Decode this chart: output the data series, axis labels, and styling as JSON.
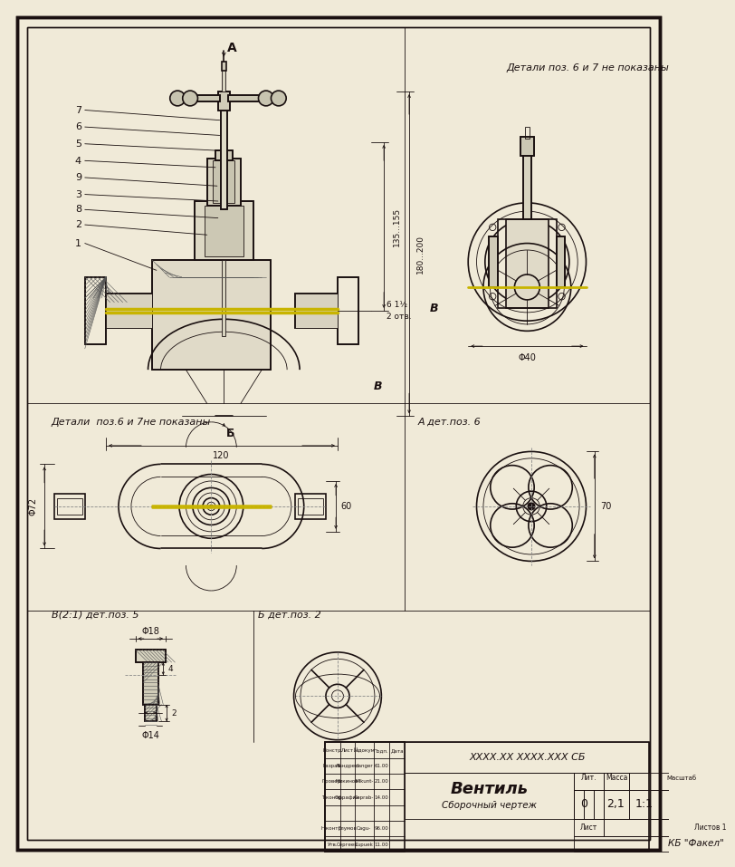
{
  "bg_color": "#f0ead8",
  "dc": "#1a1010",
  "yc": "#c8b400",
  "lw_thick": 1.8,
  "lw_main": 1.2,
  "lw_thin": 0.6,
  "lw_hatch": 0.4,
  "title": "Вентиль",
  "subtitle": "Сборочный чертеж",
  "code": "XXXX.XX XXXX.XXX СБ",
  "company": "КБ \"Факел\"",
  "liter": "0",
  "mass": "2,1",
  "scale_val": "1:1",
  "sheet_label": "Лист",
  "sheets_label": "Листов 1",
  "note_top_right": "Детали поз. 6 и 7 не показаны",
  "note_mid_left": "Детали  поз.6 и 7не показаны",
  "lA": "A",
  "lB": "B",
  "lBig_B": "Б",
  "lB_detail": "Б дет.поз. 2",
  "lV_detail": "В(2:1) дет.поз. 5",
  "lA_detail": "А дет.поз. 6",
  "d135": "135...155",
  "d180": "180...200",
  "d120": "120",
  "dPhi40": "Φ40",
  "dPhi72": "Φ72",
  "d60": "60",
  "d70": "70",
  "dPhi18": "Φ18",
  "dPhi14": "Φ14",
  "d4": "4",
  "d2": "2",
  "d6_1_2": "6 1½",
  "d2otv": "2 отв.",
  "pos_nums": [
    "1",
    "2",
    "3",
    "4",
    "5",
    "6",
    "7",
    "8",
    "9"
  ],
  "tb_rows": [
    [
      "Констр.",
      "Лист",
      "№докум",
      "Подп.",
      "Дата"
    ],
    [
      "Разраб.",
      "Линдрес",
      "danger",
      "61.00"
    ],
    [
      "Провер.",
      "Микинов",
      "Mikunt-",
      "21.00"
    ],
    [
      "Т.контр.",
      "Офрафин",
      "Geprab-",
      "14.00"
    ],
    [
      "",
      "",
      "",
      ""
    ],
    [
      "Н.контр.",
      "Глумов",
      "Cagu-",
      "96.00"
    ],
    [
      "Утв.",
      "Сергеев",
      "Cupuek",
      "11.00"
    ]
  ]
}
